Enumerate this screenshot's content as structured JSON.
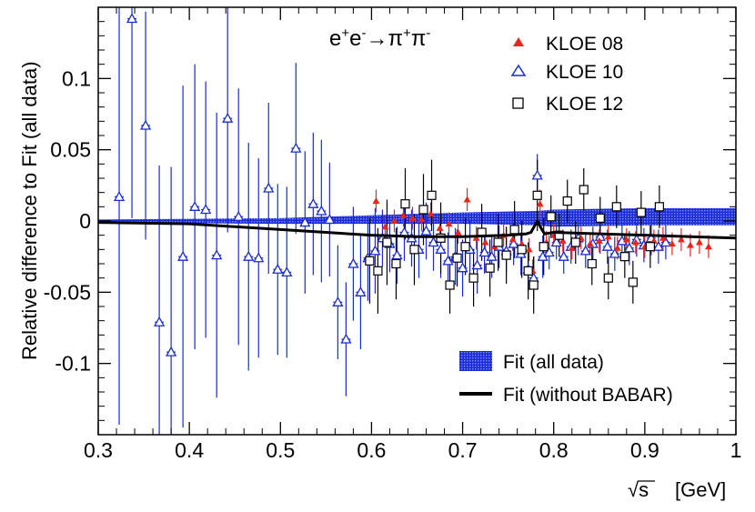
{
  "chart_data": {
    "type": "scatter",
    "title": {
      "base": "e",
      "sup1": "+",
      "mid1": "e",
      "sup2": "-",
      "arrow": "→",
      "pi": "π",
      "sup3": "+",
      "pi2": "π",
      "sup4": "-"
    },
    "xlabel": {
      "sqrt": "√s",
      "unit": "[GeV]"
    },
    "ylabel": "Relative difference to Fit (all data)",
    "xlim": [
      0.3,
      1.0
    ],
    "ylim": [
      -0.15,
      0.15
    ],
    "x_ticks": [
      0.3,
      0.4,
      0.5,
      0.6,
      0.7,
      0.8,
      0.9,
      1.0
    ],
    "x_tick_labels": [
      "0.3",
      "0.4",
      "0.5",
      "0.6",
      "0.7",
      "0.8",
      "0.9",
      "1"
    ],
    "y_ticks": [
      -0.1,
      -0.05,
      0,
      0.05,
      0.1
    ],
    "y_tick_labels": [
      "-0.1",
      "-0.05",
      "0",
      "0.05",
      "0.1"
    ],
    "legend_top": [
      {
        "name": "KLOE 08",
        "marker": "filled-triangle",
        "color": "#e8261b"
      },
      {
        "name": "KLOE 10",
        "marker": "open-triangle",
        "color": "#1a2bd6"
      },
      {
        "name": "KLOE 12",
        "marker": "open-square",
        "color": "#000000"
      }
    ],
    "legend_bottom": [
      {
        "name": "Fit (all data)",
        "style": "band",
        "color": "#1a2bd6"
      },
      {
        "name": "Fit (without BABAR)",
        "style": "line",
        "color": "#000000"
      }
    ],
    "fit_band": {
      "x": [
        0.3,
        0.4,
        0.5,
        0.6,
        0.7,
        0.78,
        0.8,
        0.9,
        1.0
      ],
      "center": [
        0.0,
        0.0,
        0.0,
        0.001,
        0.002,
        0.002,
        0.002,
        0.003,
        0.003
      ],
      "half_width": [
        0.001,
        0.0015,
        0.002,
        0.003,
        0.004,
        0.005,
        0.006,
        0.006,
        0.006
      ]
    },
    "fit_without_babar": {
      "x": [
        0.3,
        0.4,
        0.5,
        0.55,
        0.6,
        0.65,
        0.7,
        0.75,
        0.77,
        0.775,
        0.782,
        0.787,
        0.79,
        0.8,
        0.85,
        0.9,
        0.95,
        1.0
      ],
      "y": [
        -0.001,
        -0.002,
        -0.006,
        -0.008,
        -0.01,
        -0.011,
        -0.011,
        -0.01,
        -0.009,
        -0.008,
        0.0,
        -0.006,
        -0.009,
        -0.008,
        -0.009,
        -0.01,
        -0.011,
        -0.012
      ]
    },
    "series": [
      {
        "name": "KLOE 10",
        "points": [
          {
            "x": 0.323,
            "y": 0.017,
            "err": 0.16
          },
          {
            "x": 0.337,
            "y": 0.142,
            "err": 0.14
          },
          {
            "x": 0.352,
            "y": 0.067,
            "err": 0.08
          },
          {
            "x": 0.367,
            "y": -0.071,
            "err": 0.11
          },
          {
            "x": 0.38,
            "y": -0.092,
            "err": 0.13
          },
          {
            "x": 0.393,
            "y": -0.025,
            "err": 0.12
          },
          {
            "x": 0.406,
            "y": 0.01,
            "err": 0.1
          },
          {
            "x": 0.418,
            "y": 0.008,
            "err": 0.09
          },
          {
            "x": 0.43,
            "y": -0.024,
            "err": 0.1
          },
          {
            "x": 0.442,
            "y": 0.072,
            "err": 0.08
          },
          {
            "x": 0.454,
            "y": 0.003,
            "err": 0.09
          },
          {
            "x": 0.465,
            "y": -0.025,
            "err": 0.08
          },
          {
            "x": 0.476,
            "y": -0.026,
            "err": 0.07
          },
          {
            "x": 0.487,
            "y": 0.023,
            "err": 0.06
          },
          {
            "x": 0.497,
            "y": -0.034,
            "err": 0.06
          },
          {
            "x": 0.507,
            "y": -0.036,
            "err": 0.06
          },
          {
            "x": 0.517,
            "y": 0.051,
            "err": 0.06
          },
          {
            "x": 0.527,
            "y": -0.001,
            "err": 0.05
          },
          {
            "x": 0.536,
            "y": 0.012,
            "err": 0.05
          },
          {
            "x": 0.545,
            "y": 0.007,
            "err": 0.05
          },
          {
            "x": 0.554,
            "y": 0.001,
            "err": 0.04
          },
          {
            "x": 0.563,
            "y": -0.057,
            "err": 0.04
          },
          {
            "x": 0.572,
            "y": -0.083,
            "err": 0.04
          },
          {
            "x": 0.58,
            "y": -0.03,
            "err": 0.04
          },
          {
            "x": 0.588,
            "y": -0.05,
            "err": 0.04
          },
          {
            "x": 0.596,
            "y": -0.026,
            "err": 0.03
          },
          {
            "x": 0.604,
            "y": -0.021,
            "err": 0.03
          },
          {
            "x": 0.612,
            "y": -0.012,
            "err": 0.02
          },
          {
            "x": 0.62,
            "y": -0.016,
            "err": 0.02
          },
          {
            "x": 0.628,
            "y": -0.024,
            "err": 0.02
          },
          {
            "x": 0.636,
            "y": -0.008,
            "err": 0.02
          },
          {
            "x": 0.644,
            "y": -0.012,
            "err": 0.02
          },
          {
            "x": 0.652,
            "y": -0.02,
            "err": 0.02
          },
          {
            "x": 0.66,
            "y": -0.007,
            "err": 0.02
          },
          {
            "x": 0.668,
            "y": -0.015,
            "err": 0.02
          },
          {
            "x": 0.676,
            "y": -0.02,
            "err": 0.02
          },
          {
            "x": 0.684,
            "y": -0.028,
            "err": 0.02
          },
          {
            "x": 0.692,
            "y": -0.025,
            "err": 0.02
          },
          {
            "x": 0.7,
            "y": -0.033,
            "err": 0.02
          },
          {
            "x": 0.708,
            "y": -0.02,
            "err": 0.02
          },
          {
            "x": 0.716,
            "y": -0.031,
            "err": 0.02
          },
          {
            "x": 0.724,
            "y": -0.022,
            "err": 0.015
          },
          {
            "x": 0.732,
            "y": -0.025,
            "err": 0.015
          },
          {
            "x": 0.74,
            "y": -0.018,
            "err": 0.015
          },
          {
            "x": 0.748,
            "y": -0.021,
            "err": 0.015
          },
          {
            "x": 0.756,
            "y": -0.016,
            "err": 0.015
          },
          {
            "x": 0.764,
            "y": -0.023,
            "err": 0.015
          },
          {
            "x": 0.772,
            "y": -0.034,
            "err": 0.015
          },
          {
            "x": 0.778,
            "y": -0.04,
            "err": 0.015
          },
          {
            "x": 0.782,
            "y": 0.032,
            "err": 0.015
          },
          {
            "x": 0.788,
            "y": -0.025,
            "err": 0.015
          },
          {
            "x": 0.795,
            "y": -0.022,
            "err": 0.012
          },
          {
            "x": 0.803,
            "y": -0.015,
            "err": 0.012
          },
          {
            "x": 0.811,
            "y": -0.025,
            "err": 0.012
          },
          {
            "x": 0.819,
            "y": -0.018,
            "err": 0.012
          },
          {
            "x": 0.827,
            "y": -0.012,
            "err": 0.012
          },
          {
            "x": 0.835,
            "y": -0.021,
            "err": 0.012
          },
          {
            "x": 0.843,
            "y": -0.016,
            "err": 0.012
          },
          {
            "x": 0.851,
            "y": -0.011,
            "err": 0.012
          },
          {
            "x": 0.859,
            "y": -0.018,
            "err": 0.012
          },
          {
            "x": 0.867,
            "y": -0.023,
            "err": 0.012
          },
          {
            "x": 0.875,
            "y": -0.014,
            "err": 0.012
          },
          {
            "x": 0.883,
            "y": -0.019,
            "err": 0.012
          },
          {
            "x": 0.891,
            "y": -0.013,
            "err": 0.012
          },
          {
            "x": 0.899,
            "y": -0.017,
            "err": 0.012
          },
          {
            "x": 0.907,
            "y": -0.012,
            "err": 0.012
          },
          {
            "x": 0.915,
            "y": -0.018,
            "err": 0.012
          },
          {
            "x": 0.923,
            "y": -0.015,
            "err": 0.012
          }
        ]
      },
      {
        "name": "KLOE 08",
        "points": [
          {
            "x": 0.605,
            "y": 0.014,
            "err": 0.008
          },
          {
            "x": 0.615,
            "y": -0.004,
            "err": 0.008
          },
          {
            "x": 0.625,
            "y": 0.0,
            "err": 0.008
          },
          {
            "x": 0.635,
            "y": 0.004,
            "err": 0.008
          },
          {
            "x": 0.645,
            "y": 0.002,
            "err": 0.008
          },
          {
            "x": 0.655,
            "y": 0.001,
            "err": 0.008
          },
          {
            "x": 0.665,
            "y": 0.005,
            "err": 0.008
          },
          {
            "x": 0.675,
            "y": -0.005,
            "err": 0.008
          },
          {
            "x": 0.685,
            "y": -0.002,
            "err": 0.008
          },
          {
            "x": 0.695,
            "y": -0.008,
            "err": 0.008
          },
          {
            "x": 0.705,
            "y": 0.015,
            "err": 0.008
          },
          {
            "x": 0.715,
            "y": -0.012,
            "err": 0.008
          },
          {
            "x": 0.725,
            "y": -0.015,
            "err": 0.008
          },
          {
            "x": 0.735,
            "y": -0.018,
            "err": 0.008
          },
          {
            "x": 0.745,
            "y": -0.01,
            "err": 0.008
          },
          {
            "x": 0.755,
            "y": -0.013,
            "err": 0.008
          },
          {
            "x": 0.765,
            "y": -0.016,
            "err": 0.008
          },
          {
            "x": 0.773,
            "y": -0.02,
            "err": 0.008
          },
          {
            "x": 0.777,
            "y": -0.035,
            "err": 0.008
          },
          {
            "x": 0.785,
            "y": 0.012,
            "err": 0.01
          },
          {
            "x": 0.792,
            "y": -0.015,
            "err": 0.008
          },
          {
            "x": 0.8,
            "y": -0.01,
            "err": 0.008
          },
          {
            "x": 0.81,
            "y": -0.014,
            "err": 0.008
          },
          {
            "x": 0.82,
            "y": -0.019,
            "err": 0.008
          },
          {
            "x": 0.83,
            "y": -0.012,
            "err": 0.008
          },
          {
            "x": 0.84,
            "y": -0.016,
            "err": 0.008
          },
          {
            "x": 0.85,
            "y": -0.014,
            "err": 0.008
          },
          {
            "x": 0.86,
            "y": -0.011,
            "err": 0.008
          },
          {
            "x": 0.87,
            "y": -0.019,
            "err": 0.008
          },
          {
            "x": 0.88,
            "y": -0.013,
            "err": 0.008
          },
          {
            "x": 0.89,
            "y": -0.015,
            "err": 0.008
          },
          {
            "x": 0.9,
            "y": -0.018,
            "err": 0.008
          },
          {
            "x": 0.91,
            "y": -0.014,
            "err": 0.008
          },
          {
            "x": 0.92,
            "y": -0.012,
            "err": 0.008
          },
          {
            "x": 0.93,
            "y": -0.016,
            "err": 0.008
          },
          {
            "x": 0.94,
            "y": -0.013,
            "err": 0.008
          },
          {
            "x": 0.95,
            "y": -0.017,
            "err": 0.008
          },
          {
            "x": 0.96,
            "y": -0.015,
            "err": 0.008
          },
          {
            "x": 0.97,
            "y": -0.018,
            "err": 0.008
          }
        ]
      },
      {
        "name": "KLOE 12",
        "points": [
          {
            "x": 0.598,
            "y": -0.028,
            "err": 0.03
          },
          {
            "x": 0.607,
            "y": -0.035,
            "err": 0.03
          },
          {
            "x": 0.617,
            "y": -0.015,
            "err": 0.03
          },
          {
            "x": 0.627,
            "y": -0.03,
            "err": 0.025
          },
          {
            "x": 0.637,
            "y": 0.012,
            "err": 0.025
          },
          {
            "x": 0.647,
            "y": -0.02,
            "err": 0.025
          },
          {
            "x": 0.657,
            "y": 0.008,
            "err": 0.025
          },
          {
            "x": 0.666,
            "y": 0.018,
            "err": 0.025
          },
          {
            "x": 0.676,
            "y": -0.012,
            "err": 0.025
          },
          {
            "x": 0.686,
            "y": -0.045,
            "err": 0.02
          },
          {
            "x": 0.694,
            "y": -0.026,
            "err": 0.02
          },
          {
            "x": 0.703,
            "y": -0.018,
            "err": 0.02
          },
          {
            "x": 0.712,
            "y": -0.04,
            "err": 0.02
          },
          {
            "x": 0.721,
            "y": -0.008,
            "err": 0.02
          },
          {
            "x": 0.73,
            "y": -0.033,
            "err": 0.02
          },
          {
            "x": 0.739,
            "y": -0.015,
            "err": 0.02
          },
          {
            "x": 0.748,
            "y": -0.024,
            "err": 0.02
          },
          {
            "x": 0.757,
            "y": -0.006,
            "err": 0.02
          },
          {
            "x": 0.765,
            "y": -0.02,
            "err": 0.02
          },
          {
            "x": 0.772,
            "y": -0.035,
            "err": 0.02
          },
          {
            "x": 0.778,
            "y": -0.045,
            "err": 0.02
          },
          {
            "x": 0.782,
            "y": 0.018,
            "err": 0.025
          },
          {
            "x": 0.789,
            "y": -0.018,
            "err": 0.02
          },
          {
            "x": 0.797,
            "y": 0.003,
            "err": 0.015
          },
          {
            "x": 0.806,
            "y": -0.01,
            "err": 0.015
          },
          {
            "x": 0.815,
            "y": 0.014,
            "err": 0.015
          },
          {
            "x": 0.824,
            "y": -0.015,
            "err": 0.015
          },
          {
            "x": 0.833,
            "y": 0.022,
            "err": 0.015
          },
          {
            "x": 0.842,
            "y": -0.03,
            "err": 0.015
          },
          {
            "x": 0.851,
            "y": 0.002,
            "err": 0.015
          },
          {
            "x": 0.86,
            "y": -0.04,
            "err": 0.015
          },
          {
            "x": 0.869,
            "y": 0.01,
            "err": 0.015
          },
          {
            "x": 0.878,
            "y": -0.025,
            "err": 0.015
          },
          {
            "x": 0.887,
            "y": -0.043,
            "err": 0.015
          },
          {
            "x": 0.896,
            "y": 0.006,
            "err": 0.015
          },
          {
            "x": 0.906,
            "y": -0.018,
            "err": 0.015
          },
          {
            "x": 0.916,
            "y": 0.01,
            "err": 0.015
          }
        ]
      }
    ]
  }
}
